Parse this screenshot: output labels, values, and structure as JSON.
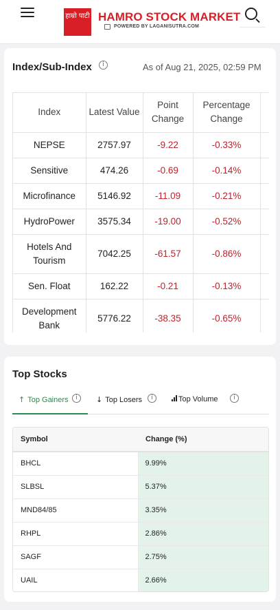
{
  "header": {
    "logo_text": "हाम्रो पाटी",
    "brand": "HAMRO STOCK MARKET",
    "powered_by": "POWERED BY LAGANISUTRA.COM"
  },
  "index_card": {
    "title": "Index/Sub-Index",
    "as_of": "As of Aug 21, 2025, 02:59 PM",
    "columns": [
      "Index",
      "Latest Value",
      "Point Change",
      "Percentage Change"
    ],
    "rows": [
      {
        "index": "NEPSE",
        "value": "2757.97",
        "point": "-9.22",
        "pct": "-0.33%"
      },
      {
        "index": "Sensitive",
        "value": "474.26",
        "point": "-0.69",
        "pct": "-0.14%"
      },
      {
        "index": "Microfinance",
        "value": "5146.92",
        "point": "-11.09",
        "pct": "-0.21%"
      },
      {
        "index": "HydroPower",
        "value": "3575.34",
        "point": "-19.00",
        "pct": "-0.52%"
      },
      {
        "index": "Hotels And Tourism",
        "value": "7042.25",
        "point": "-61.57",
        "pct": "-0.86%"
      },
      {
        "index": "Sen. Float",
        "value": "162.22",
        "point": "-0.21",
        "pct": "-0.13%"
      },
      {
        "index": "Development Bank",
        "value": "5776.22",
        "point": "-38.35",
        "pct": "-0.65%"
      }
    ]
  },
  "top_stocks": {
    "title": "Top Stocks",
    "tabs": [
      "Top Gainers",
      "Top Losers",
      "Top Volume"
    ],
    "active_tab": "Top Gainers",
    "columns": [
      "Symbol",
      "Change (%)"
    ],
    "rows": [
      {
        "symbol": "BHCL",
        "change": "9.99%"
      },
      {
        "symbol": "SLBSL",
        "change": "5.37%"
      },
      {
        "symbol": "MND84/85",
        "change": "3.35%"
      },
      {
        "symbol": "RHPL",
        "change": "2.86%"
      },
      {
        "symbol": "SAGF",
        "change": "2.75%"
      },
      {
        "symbol": "UAIL",
        "change": "2.66%"
      }
    ]
  },
  "colors": {
    "brand_red": "#d81f26",
    "negative": "#c0212b",
    "active_tab": "#2e8b4a",
    "gain_bg": "#e4f3e9"
  }
}
